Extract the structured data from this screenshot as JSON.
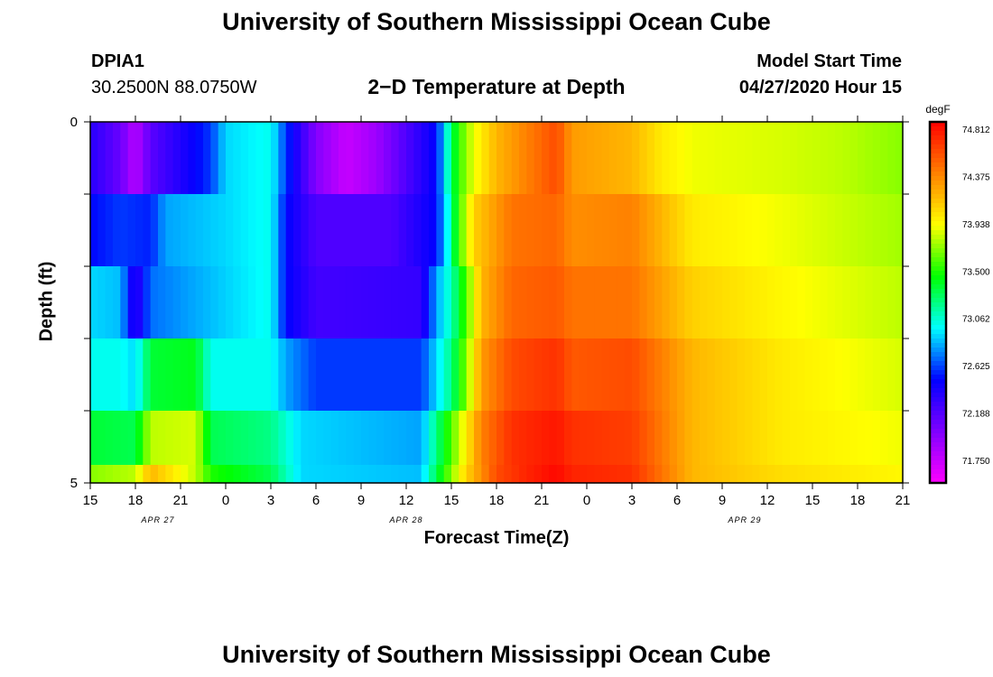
{
  "header": {
    "title_top": "University of Southern Mississippi Ocean Cube",
    "title_bottom": "University of Southern Mississippi Ocean Cube",
    "station_id": "DPIA1",
    "station_location": "30.2500N 88.0750W",
    "subtitle": "2−D Temperature at Depth",
    "model_start_label": "Model Start Time",
    "model_start_value": "04/27/2020 Hour 15"
  },
  "colors": {
    "palette": [
      "#ff00ff",
      "#7f00ff",
      "#0000ff",
      "#00ffff",
      "#00ff00",
      "#ffff00",
      "#ff8000",
      "#ff0000"
    ]
  },
  "chart_data": {
    "type": "heatmap",
    "title": "2−D Temperature at Depth",
    "xlabel": "Forecast Time(Z)",
    "ylabel": "Depth (ft)",
    "x_tick_labels": [
      "15",
      "18",
      "21",
      "0",
      "3",
      "6",
      "9",
      "12",
      "15",
      "18",
      "21",
      "0",
      "3",
      "6",
      "9",
      "12",
      "15",
      "18",
      "21"
    ],
    "date_labels": [
      {
        "label": "APR 27",
        "hour_index": 4.5
      },
      {
        "label": "APR 28",
        "hour_index": 21
      },
      {
        "label": "APR 29",
        "hour_index": 43.5
      }
    ],
    "x_range_hours": [
      0,
      54
    ],
    "y_tick_labels": [
      "0",
      "5"
    ],
    "ylim": [
      0,
      5
    ],
    "depth_levels": [
      0.5,
      1.5,
      2.5,
      3.5,
      4.5
    ],
    "colorbar": {
      "unit": "degF",
      "min": 71.54,
      "max": 74.88,
      "tick_labels": [
        "74.812",
        "74.375",
        "73.938",
        "73.500",
        "73.062",
        "72.625",
        "72.188",
        "71.750"
      ]
    },
    "rows": [
      {
        "depth": 0.5,
        "keypoints": [
          [
            0,
            72.35
          ],
          [
            2,
            72.1
          ],
          [
            3,
            71.8
          ],
          [
            4,
            72.15
          ],
          [
            8,
            72.6
          ],
          [
            9,
            72.9
          ],
          [
            12,
            73.0
          ],
          [
            13,
            72.6
          ],
          [
            15,
            72.0
          ],
          [
            17,
            71.75
          ],
          [
            19,
            71.9
          ],
          [
            23,
            72.5
          ],
          [
            23.8,
            73.1
          ],
          [
            24.4,
            73.5
          ],
          [
            25.5,
            73.9
          ],
          [
            27,
            74.2
          ],
          [
            29,
            74.4
          ],
          [
            31,
            74.6
          ],
          [
            32,
            74.3
          ],
          [
            36,
            74.2
          ],
          [
            38,
            74.0
          ],
          [
            40,
            73.9
          ],
          [
            46,
            73.85
          ],
          [
            50,
            73.8
          ],
          [
            54,
            73.7
          ]
        ]
      },
      {
        "depth": 1.5,
        "keypoints": [
          [
            0,
            72.5
          ],
          [
            2,
            72.6
          ],
          [
            4,
            72.55
          ],
          [
            5,
            72.8
          ],
          [
            9,
            72.9
          ],
          [
            12,
            73.0
          ],
          [
            13,
            72.5
          ],
          [
            15,
            72.2
          ],
          [
            20,
            72.2
          ],
          [
            23,
            72.5
          ],
          [
            23.8,
            73.0
          ],
          [
            24.4,
            73.5
          ],
          [
            25.5,
            74.1
          ],
          [
            28,
            74.45
          ],
          [
            31,
            74.5
          ],
          [
            32,
            74.35
          ],
          [
            36,
            74.4
          ],
          [
            40,
            74.0
          ],
          [
            46,
            73.9
          ],
          [
            54,
            73.75
          ]
        ]
      },
      {
        "depth": 2.5,
        "keypoints": [
          [
            0,
            72.9
          ],
          [
            2,
            72.85
          ],
          [
            3,
            72.3
          ],
          [
            4,
            72.7
          ],
          [
            8,
            72.85
          ],
          [
            12,
            73.0
          ],
          [
            13,
            72.5
          ],
          [
            15,
            72.25
          ],
          [
            22,
            72.3
          ],
          [
            23,
            72.8
          ],
          [
            24,
            73.1
          ],
          [
            25,
            73.6
          ],
          [
            26,
            74.2
          ],
          [
            28,
            74.5
          ],
          [
            31,
            74.55
          ],
          [
            32,
            74.45
          ],
          [
            36,
            74.45
          ],
          [
            40,
            74.1
          ],
          [
            46,
            73.95
          ],
          [
            54,
            73.8
          ]
        ]
      },
      {
        "depth": 3.5,
        "keypoints": [
          [
            0,
            73.0
          ],
          [
            2,
            73.0
          ],
          [
            3,
            72.9
          ],
          [
            4,
            73.35
          ],
          [
            7,
            73.4
          ],
          [
            8,
            73.0
          ],
          [
            12,
            73.0
          ],
          [
            13,
            72.8
          ],
          [
            15,
            72.6
          ],
          [
            22,
            72.6
          ],
          [
            23,
            72.9
          ],
          [
            24,
            73.2
          ],
          [
            25,
            73.7
          ],
          [
            26,
            74.3
          ],
          [
            28,
            74.6
          ],
          [
            31,
            74.7
          ],
          [
            32,
            74.55
          ],
          [
            36,
            74.6
          ],
          [
            40,
            74.2
          ],
          [
            46,
            74.0
          ],
          [
            54,
            73.85
          ]
        ]
      },
      {
        "depth": 4.5,
        "keypoints": [
          [
            0,
            73.35
          ],
          [
            3,
            73.3
          ],
          [
            4,
            73.8
          ],
          [
            7,
            73.85
          ],
          [
            8,
            73.3
          ],
          [
            12,
            73.2
          ],
          [
            14,
            72.9
          ],
          [
            22,
            72.8
          ],
          [
            23,
            73.2
          ],
          [
            24,
            73.6
          ],
          [
            25,
            74.0
          ],
          [
            26,
            74.4
          ],
          [
            28,
            74.7
          ],
          [
            31,
            74.8
          ],
          [
            32,
            74.7
          ],
          [
            36,
            74.65
          ],
          [
            40,
            74.2
          ],
          [
            46,
            74.0
          ],
          [
            54,
            73.9
          ]
        ]
      },
      {
        "depth": 5.0,
        "keypoints": [
          [
            0,
            73.7
          ],
          [
            3,
            73.8
          ],
          [
            4,
            74.2
          ],
          [
            7,
            73.8
          ],
          [
            8,
            73.5
          ],
          [
            12,
            73.3
          ],
          [
            14,
            72.9
          ],
          [
            22,
            72.85
          ],
          [
            23,
            73.3
          ],
          [
            24,
            73.7
          ],
          [
            25,
            74.1
          ],
          [
            27,
            74.6
          ],
          [
            29,
            74.75
          ],
          [
            31,
            74.85
          ],
          [
            32,
            74.75
          ],
          [
            36,
            74.7
          ],
          [
            40,
            74.2
          ],
          [
            46,
            74.05
          ],
          [
            54,
            73.95
          ]
        ]
      }
    ]
  }
}
